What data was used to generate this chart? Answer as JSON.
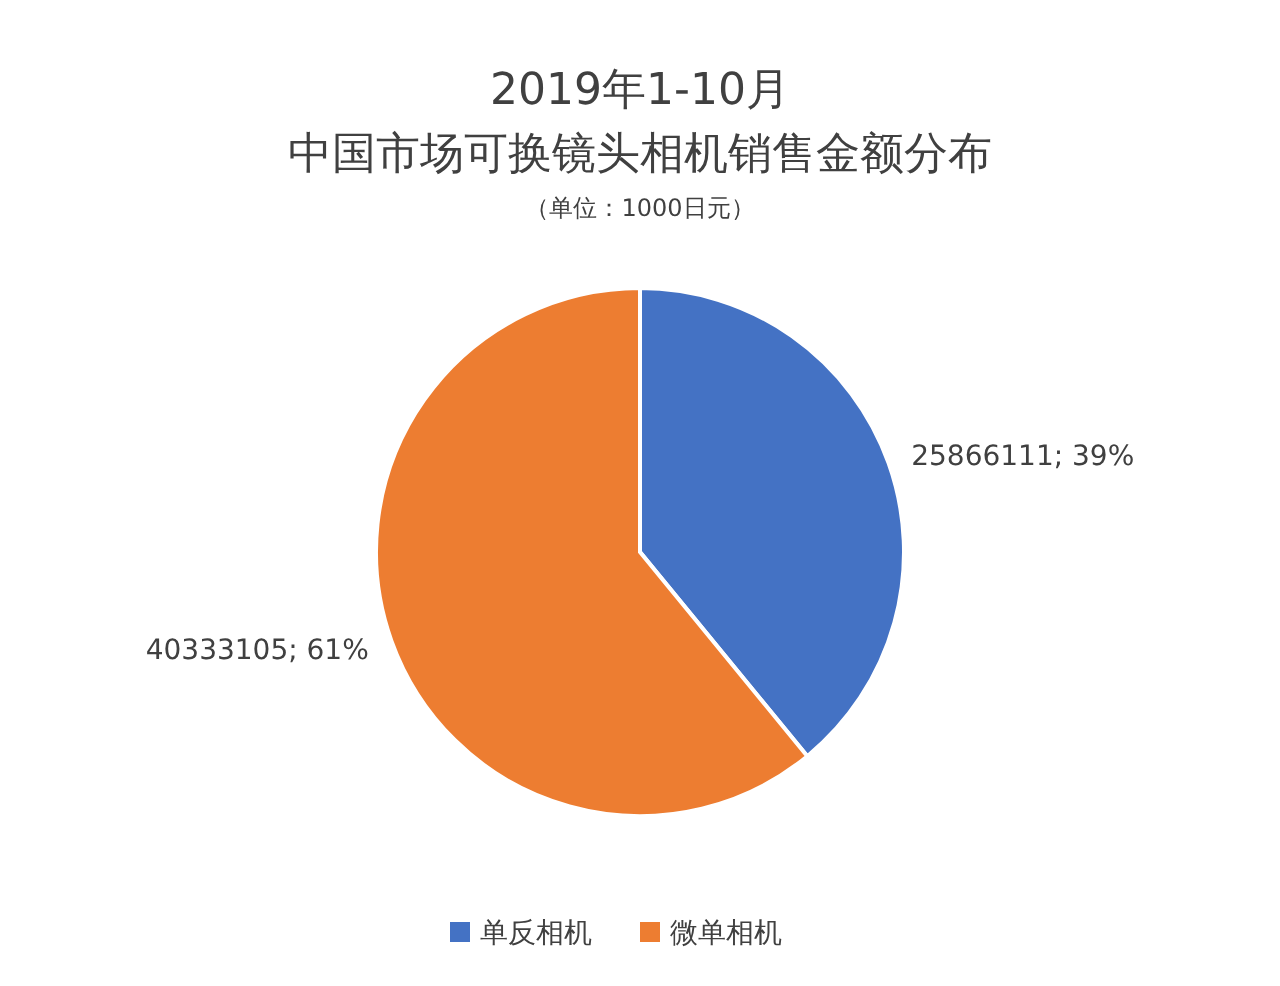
{
  "chart_data": {
    "type": "pie",
    "title": "2019年1-10月",
    "subtitle": "中国市场可换镜头相机销售金额分布",
    "annotations": [
      "（单位：1000日元）"
    ],
    "categories": [
      "单反相机",
      "微单相机"
    ],
    "values": [
      25866111,
      40333105
    ],
    "colors": [
      "#4472c4",
      "#ed7d31"
    ],
    "value_labels": [
      "25866111; 39%",
      "40333105; 61%"
    ],
    "legend": "bottom"
  }
}
